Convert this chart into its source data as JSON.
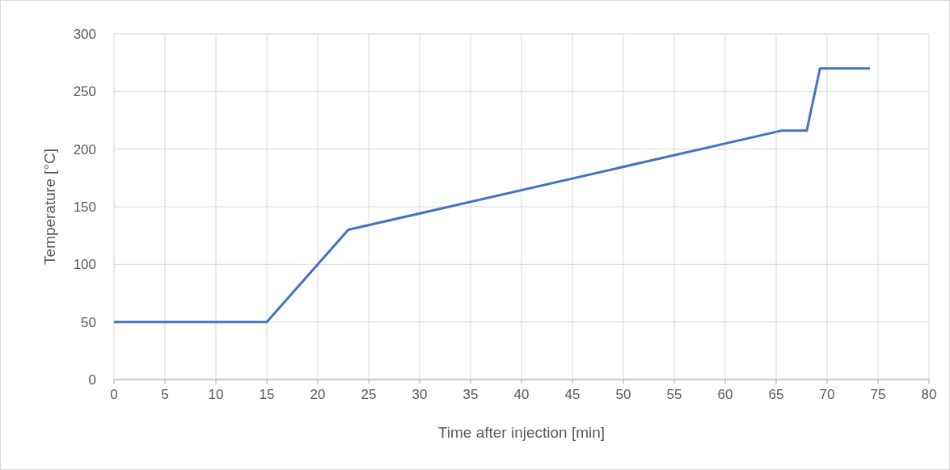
{
  "chart_data": {
    "type": "line",
    "xlabel": "Time after injection [min]",
    "ylabel": "Temperature [°C]",
    "series": [
      {
        "color": "#4472c4",
        "x": [
          0,
          15,
          23,
          65.5,
          68,
          69.3,
          74.2
        ],
        "values": [
          50,
          50,
          130,
          216,
          216,
          270,
          270
        ]
      }
    ],
    "xlim": [
      0,
      80
    ],
    "xticks": [
      0,
      5,
      10,
      15,
      20,
      25,
      30,
      35,
      40,
      45,
      50,
      55,
      60,
      65,
      70,
      75,
      80
    ],
    "ylim": [
      0,
      300
    ],
    "yticks": [
      0,
      50,
      100,
      150,
      200,
      250,
      300
    ],
    "grid": true,
    "marker": "none",
    "line_style": "solid"
  }
}
